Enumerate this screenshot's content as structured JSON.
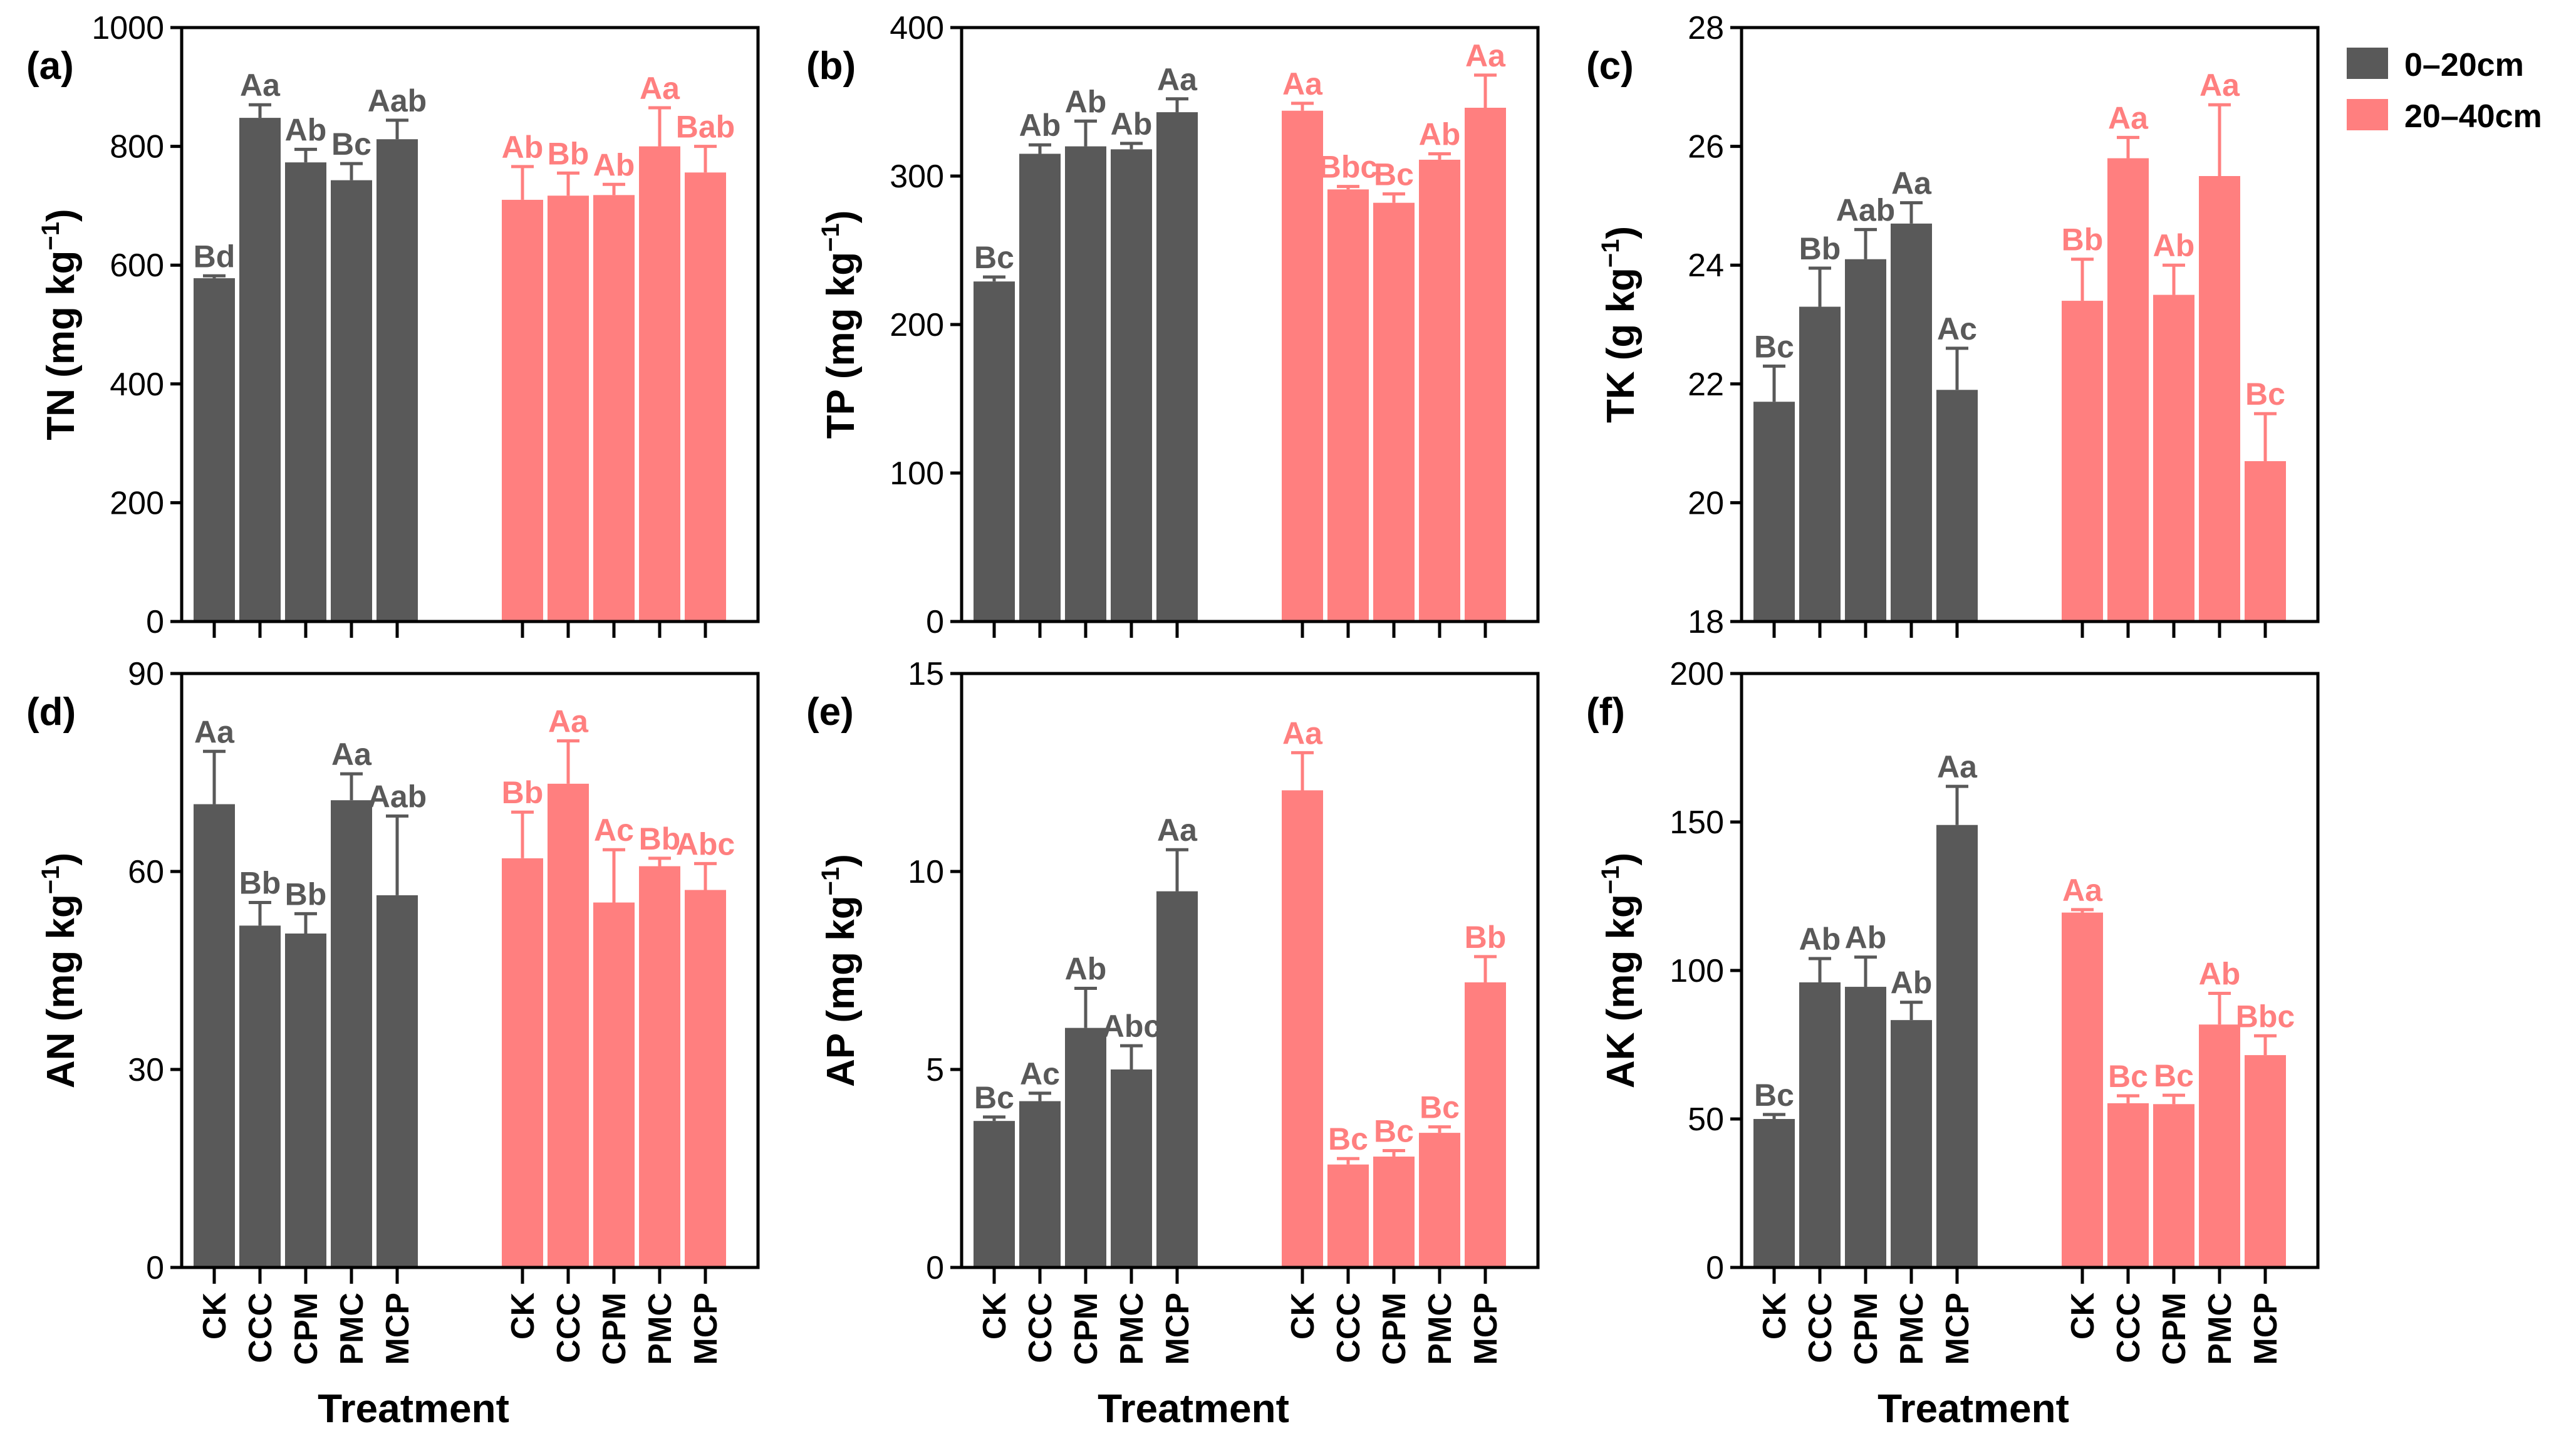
{
  "legend": [
    {
      "label": "0–20cm",
      "color": "#595959"
    },
    {
      "label": "20–40cm",
      "color": "#FF7F7F"
    }
  ],
  "chart_data": [
    {
      "type": "bar",
      "panel": "(a)",
      "ylabel": "TN (mg kg",
      "ylabel_sup": "−1",
      "ylabel_close": ")",
      "xlabel": "",
      "ylim": [
        0,
        1000
      ],
      "yticks": [
        "0",
        "200",
        "400",
        "600",
        "800",
        "1000"
      ],
      "categories": [
        "CK",
        "CCC",
        "CPM",
        "PMC",
        "MCP"
      ],
      "show_categories": false,
      "series": [
        {
          "name": "0–20cm",
          "values": [
            578,
            848,
            773,
            743,
            812
          ],
          "errors": [
            4,
            22,
            22,
            28,
            32
          ],
          "letters": [
            "Bd",
            "Aa",
            "Ab",
            "Bc",
            "Aab"
          ]
        },
        {
          "name": "20–40cm",
          "values": [
            710,
            717,
            718,
            800,
            756
          ],
          "errors": [
            56,
            38,
            18,
            65,
            44
          ],
          "letters": [
            "Ab",
            "Bb",
            "Ab",
            "Aa",
            "Bab"
          ]
        }
      ]
    },
    {
      "type": "bar",
      "panel": "(b)",
      "ylabel": "TP (mg kg",
      "ylabel_sup": "−1",
      "ylabel_close": ")",
      "xlabel": "",
      "ylim": [
        0,
        400
      ],
      "yticks": [
        "0",
        "100",
        "200",
        "300",
        "400"
      ],
      "categories": [
        "CK",
        "CCC",
        "CPM",
        "PMC",
        "MCP"
      ],
      "show_categories": false,
      "series": [
        {
          "name": "0–20cm",
          "values": [
            229,
            315,
            320,
            318,
            343
          ],
          "errors": [
            3,
            6,
            17,
            4,
            9
          ],
          "letters": [
            "Bc",
            "Ab",
            "Ab",
            "Ab",
            "Aa"
          ]
        },
        {
          "name": "20–40cm",
          "values": [
            344,
            291,
            282,
            311,
            346
          ],
          "errors": [
            5,
            2,
            6,
            4,
            22
          ],
          "letters": [
            "Aa",
            "Bbc",
            "Bc",
            "Ab",
            "Aa"
          ]
        }
      ]
    },
    {
      "type": "bar",
      "panel": "(c)",
      "ylabel": "TK (g kg",
      "ylabel_sup": "−1",
      "ylabel_close": ")",
      "xlabel": "",
      "ylim": [
        18,
        28
      ],
      "yticks": [
        "18",
        "20",
        "22",
        "24",
        "26",
        "28"
      ],
      "categories": [
        "CK",
        "CCC",
        "CPM",
        "PMC",
        "MCP"
      ],
      "show_categories": false,
      "series": [
        {
          "name": "0–20cm",
          "values": [
            21.7,
            23.3,
            24.1,
            24.7,
            21.9
          ],
          "errors": [
            0.6,
            0.65,
            0.5,
            0.35,
            0.7
          ],
          "letters": [
            "Bc",
            "Bb",
            "Aab",
            "Aa",
            "Ac"
          ]
        },
        {
          "name": "20–40cm",
          "values": [
            23.4,
            25.8,
            23.5,
            25.5,
            20.7
          ],
          "errors": [
            0.7,
            0.35,
            0.5,
            1.2,
            0.8
          ],
          "letters": [
            "Bb",
            "Aa",
            "Ab",
            "Aa",
            "Bc"
          ]
        }
      ]
    },
    {
      "type": "bar",
      "panel": "(d)",
      "ylabel": "AN (mg kg",
      "ylabel_sup": "−1",
      "ylabel_close": ")",
      "xlabel": "Treatment",
      "ylim": [
        0,
        90
      ],
      "yticks": [
        "0",
        "30",
        "60",
        "90"
      ],
      "categories": [
        "CK",
        "CCC",
        "CPM",
        "PMC",
        "MCP"
      ],
      "show_categories": true,
      "series": [
        {
          "name": "0–20cm",
          "values": [
            70.2,
            51.8,
            50.6,
            70.8,
            56.4
          ],
          "errors": [
            8,
            3.5,
            3,
            4,
            12
          ],
          "letters": [
            "Aa",
            "Bb",
            "Bb",
            "Aa",
            "Aab"
          ]
        },
        {
          "name": "20–40cm",
          "values": [
            62,
            73.3,
            55.3,
            60.8,
            57.2
          ],
          "errors": [
            7,
            6.5,
            8,
            1.2,
            4
          ],
          "letters": [
            "Bb",
            "Aa",
            "Ac",
            "Bb",
            "Abc"
          ]
        }
      ]
    },
    {
      "type": "bar",
      "panel": "(e)",
      "ylabel": "AP (mg kg",
      "ylabel_sup": "−1",
      "ylabel_close": ")",
      "xlabel": "Treatment",
      "ylim": [
        0,
        15
      ],
      "yticks": [
        "0",
        "5",
        "10",
        "15"
      ],
      "categories": [
        "CK",
        "CCC",
        "CPM",
        "PMC",
        "MCP"
      ],
      "show_categories": true,
      "series": [
        {
          "name": "0–20cm",
          "values": [
            3.7,
            4.2,
            6.05,
            5.0,
            9.5
          ],
          "errors": [
            0.1,
            0.2,
            1.0,
            0.6,
            1.05
          ],
          "letters": [
            "Bc",
            "Ac",
            "Ab",
            "Abc",
            "Aa"
          ]
        },
        {
          "name": "20–40cm",
          "values": [
            12.05,
            2.6,
            2.8,
            3.4,
            7.2
          ],
          "errors": [
            0.95,
            0.15,
            0.15,
            0.15,
            0.65
          ],
          "letters": [
            "Aa",
            "Bc",
            "Bc",
            "Bc",
            "Bb"
          ]
        }
      ]
    },
    {
      "type": "bar",
      "panel": "(f)",
      "ylabel": "AK (mg kg",
      "ylabel_sup": "−1",
      "ylabel_close": ")",
      "xlabel": "Treatment",
      "ylim": [
        0,
        200
      ],
      "yticks": [
        "0",
        "50",
        "100",
        "150",
        "200"
      ],
      "categories": [
        "CK",
        "CCC",
        "CPM",
        "PMC",
        "MCP"
      ],
      "show_categories": true,
      "series": [
        {
          "name": "0–20cm",
          "values": [
            50,
            96,
            94.5,
            83.3,
            149
          ],
          "errors": [
            1.5,
            8,
            10,
            6,
            13
          ],
          "letters": [
            "Bc",
            "Ab",
            "Ab",
            "Ab",
            "Aa"
          ]
        },
        {
          "name": "20–40cm",
          "values": [
            119.5,
            55.3,
            55,
            81.8,
            71.5
          ],
          "errors": [
            1,
            2.5,
            3,
            10.5,
            6.5
          ],
          "letters": [
            "Aa",
            "Bc",
            "Bc",
            "Ab",
            "Bbc"
          ]
        }
      ]
    }
  ]
}
